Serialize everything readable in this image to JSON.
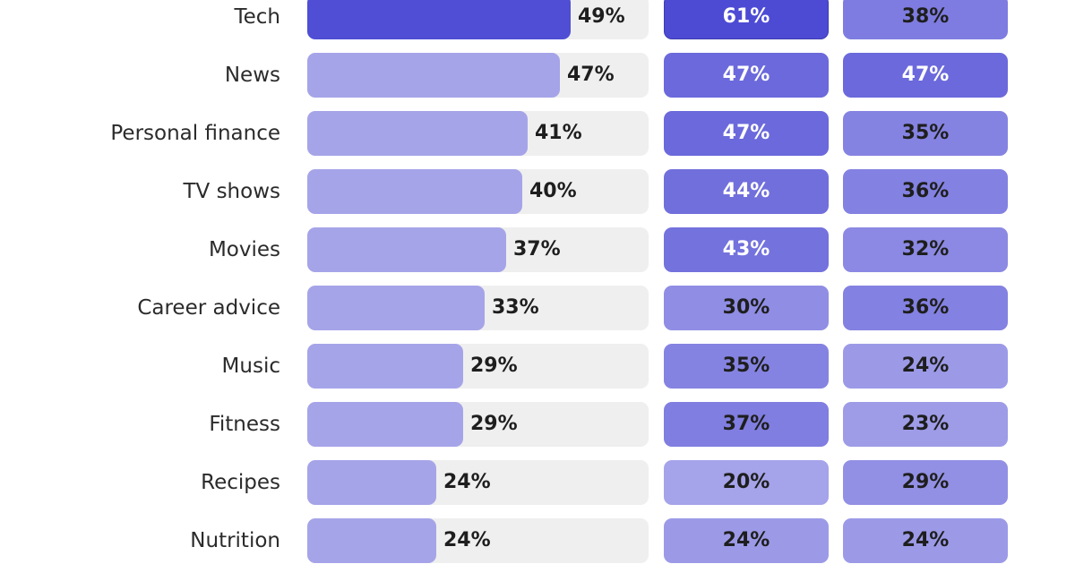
{
  "chart_data": {
    "type": "bar",
    "title": "",
    "xlabel": "",
    "ylabel": "",
    "xlim": [
      0,
      100
    ],
    "grid": false,
    "legend": "none",
    "categories": [
      "Tech",
      "News",
      "Personal finance",
      "TV shows",
      "Movies",
      "Career advice",
      "Music",
      "Fitness",
      "Recipes",
      "Nutrition"
    ],
    "series": [
      {
        "values": [
          49,
          47,
          41,
          40,
          37,
          33,
          29,
          29,
          24,
          24
        ],
        "labels": [
          "49%",
          "47%",
          "41%",
          "40%",
          "37%",
          "33%",
          "29%",
          "29%",
          "24%",
          "24%"
        ]
      },
      {
        "values": [
          61,
          47,
          47,
          44,
          43,
          30,
          35,
          37,
          20,
          24
        ],
        "labels": [
          "61%",
          "47%",
          "47%",
          "44%",
          "43%",
          "30%",
          "35%",
          "37%",
          "20%",
          "24%"
        ]
      },
      {
        "values": [
          38,
          47,
          35,
          36,
          32,
          36,
          24,
          23,
          29,
          24
        ],
        "labels": [
          "38%",
          "47%",
          "35%",
          "36%",
          "32%",
          "36%",
          "24%",
          "23%",
          "29%",
          "24%"
        ]
      }
    ],
    "colors": {
      "track": "#efefef",
      "bar": "#a6a4e8",
      "bar_highlight": "#4f4ed5",
      "scale_low": "#a9a7ea",
      "scale_high": "#4b49d3",
      "text_dark": "#1e1e1e",
      "text_light": "#ffffff"
    }
  }
}
